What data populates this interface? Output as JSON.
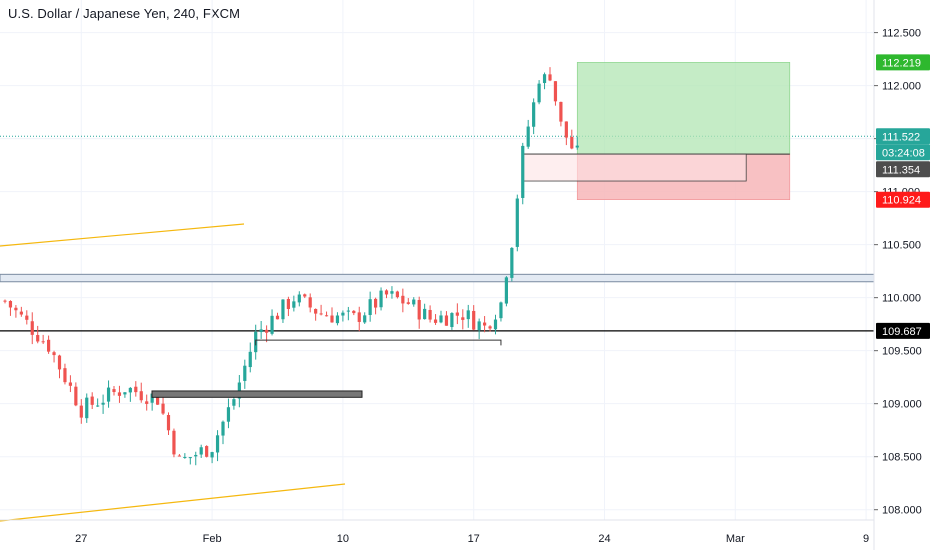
{
  "header": {
    "title": "U.S. Dollar / Japanese Yen, 240, FXCM"
  },
  "colors": {
    "up": "#26a69a",
    "down": "#ef5350",
    "grid": "#f0f3fa",
    "axis_text": "#131722",
    "profit_zone": "#b2e6b3",
    "loss_zone": "#f7b6b8",
    "trendline": "#f5b80f",
    "current_price_line": "#26a69a"
  },
  "chart_data": {
    "type": "candlestick",
    "symbol": "USDJPY",
    "timeframe": "240",
    "ylim": [
      107.95,
      112.6
    ],
    "y_ticks": [
      108.0,
      108.5,
      109.0,
      109.5,
      110.0,
      110.5,
      111.0,
      111.5,
      112.0,
      112.5
    ],
    "y_tick_labels": [
      "108.000",
      "108.500",
      "109.000",
      "109.500",
      "110.000",
      "110.500",
      "111.000",
      "111.500",
      "112.000",
      "112.500"
    ],
    "x_ticks": [
      "27",
      "Feb",
      "10",
      "17",
      "24",
      "Mar",
      "9"
    ],
    "x_tick_index": [
      14,
      38,
      62,
      86,
      110,
      134,
      158
    ],
    "series_points": [
      {
        "i": 0,
        "y": 109.97
      },
      {
        "i": 8,
        "y": 109.55
      },
      {
        "i": 14,
        "y": 108.95
      },
      {
        "i": 22,
        "y": 109.15
      },
      {
        "i": 28,
        "y": 109.05
      },
      {
        "i": 32,
        "y": 108.45
      },
      {
        "i": 38,
        "y": 108.6
      },
      {
        "i": 42,
        "y": 109.05
      },
      {
        "i": 46,
        "y": 109.65
      },
      {
        "i": 50,
        "y": 109.85
      },
      {
        "i": 53,
        "y": 110.0
      },
      {
        "i": 58,
        "y": 109.85
      },
      {
        "i": 64,
        "y": 109.8
      },
      {
        "i": 70,
        "y": 110.02
      },
      {
        "i": 74,
        "y": 109.95
      },
      {
        "i": 78,
        "y": 109.8
      },
      {
        "i": 84,
        "y": 109.85
      },
      {
        "i": 88,
        "y": 109.72
      },
      {
        "i": 91,
        "y": 109.95
      },
      {
        "i": 93,
        "y": 110.5
      },
      {
        "i": 95,
        "y": 111.4
      },
      {
        "i": 98,
        "y": 112.05
      },
      {
        "i": 100,
        "y": 112.12
      },
      {
        "i": 102,
        "y": 111.62
      },
      {
        "i": 104,
        "y": 111.42
      },
      {
        "i": 105,
        "y": 111.35
      }
    ],
    "price_tags": [
      {
        "label": "112.219",
        "value": 112.219,
        "color": "#2eb82e"
      },
      {
        "label": "111.522",
        "value": 111.522,
        "color": "#26a69a"
      },
      {
        "label": "03:24:08",
        "value": 111.43,
        "color": "#26a69a"
      },
      {
        "label": "111.354",
        "value": 111.354,
        "color": "#4d4d4d"
      },
      {
        "label": "110.924",
        "value": 110.924,
        "color": "#ff1a1a"
      },
      {
        "label": "109.687",
        "value": 109.687,
        "color": "#000000"
      }
    ],
    "current_price": 111.522,
    "horizontal_levels": [
      109.687,
      110.15,
      110.22
    ],
    "position": {
      "entry": 111.354,
      "target": 112.219,
      "stop": 110.924
    }
  }
}
